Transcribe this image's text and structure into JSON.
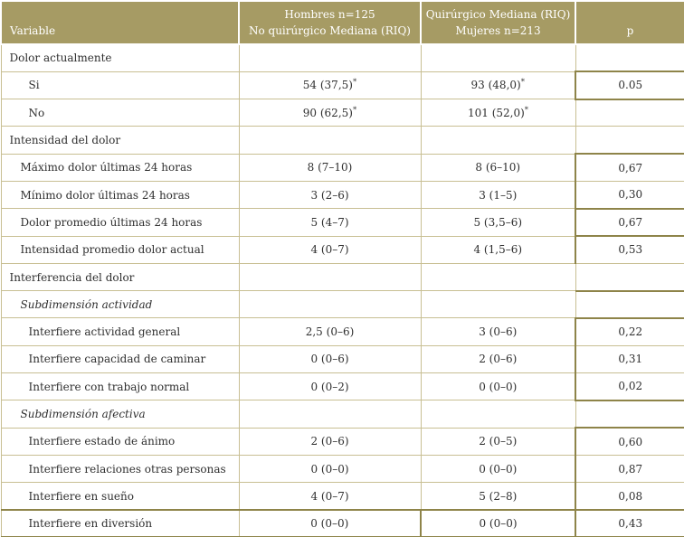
{
  "colors": {
    "header_bg": "#a69b64",
    "header_text": "#ffffff",
    "border_thin": "#c8bf93",
    "border_thick": "#8e8449",
    "text_color": "#2f2f2f",
    "page_bg": "#ffffff"
  },
  "table": {
    "header": {
      "col1": "Variable",
      "col2_line1": "Hombres n=125",
      "col2_line2": "No quirúrgico Mediana (RIQ)",
      "col3_line1": "Quirúrgico Mediana (RIQ)",
      "col3_line2": "Mujeres n=213",
      "col4": "p"
    },
    "rows": [
      {
        "label": "Dolor actualmente",
        "indent": 0,
        "italic": false,
        "c2": "",
        "c2sup": "",
        "c3": "",
        "c3sup": "",
        "p": "",
        "p_thick_top": false,
        "p_thick_left": false,
        "last": false
      },
      {
        "label": "Si",
        "indent": 2,
        "italic": false,
        "c2": "54 (37,5)",
        "c2sup": "*",
        "c3": "93 (48,0)",
        "c3sup": "*",
        "p": "0.05",
        "p_thick_top": true,
        "p_thick_left": true,
        "last": false
      },
      {
        "label": "No",
        "indent": 2,
        "italic": false,
        "c2": "90 (62,5)",
        "c2sup": "*",
        "c3": "101 (52,0)",
        "c3sup": "*",
        "p": "",
        "p_thick_top": true,
        "p_thick_left": false,
        "last": false
      },
      {
        "label": "Intensidad del dolor",
        "indent": 0,
        "italic": false,
        "c2": "",
        "c2sup": "",
        "c3": "",
        "c3sup": "",
        "p": "",
        "p_thick_top": false,
        "p_thick_left": false,
        "last": false
      },
      {
        "label": "Máximo dolor últimas 24 horas",
        "indent": 1,
        "italic": false,
        "c2": "8 (7–10)",
        "c2sup": "",
        "c3": "8 (6–10)",
        "c3sup": "",
        "p": "0,67",
        "p_thick_top": true,
        "p_thick_left": true,
        "last": false
      },
      {
        "label": "Mínimo dolor últimas 24 horas",
        "indent": 1,
        "italic": false,
        "c2": "3 (2–6)",
        "c2sup": "",
        "c3": "3 (1–5)",
        "c3sup": "",
        "p": "0,30",
        "p_thick_top": false,
        "p_thick_left": true,
        "last": false
      },
      {
        "label": "Dolor promedio últimas 24 horas",
        "indent": 1,
        "italic": false,
        "c2": "5 (4–7)",
        "c2sup": "",
        "c3": "5 (3,5–6)",
        "c3sup": "",
        "p": "0,67",
        "p_thick_top": true,
        "p_thick_left": true,
        "last": false
      },
      {
        "label": "Intensidad promedio dolor actual",
        "indent": 1,
        "italic": false,
        "c2": "4 (0–7)",
        "c2sup": "",
        "c3": "4 (1,5–6)",
        "c3sup": "",
        "p": "0,53",
        "p_thick_top": true,
        "p_thick_left": true,
        "last": false
      },
      {
        "label": "Interferencia del dolor",
        "indent": 0,
        "italic": false,
        "c2": "",
        "c2sup": "",
        "c3": "",
        "c3sup": "",
        "p": "",
        "p_thick_top": false,
        "p_thick_left": false,
        "last": false
      },
      {
        "label": "Subdimensión actividad",
        "indent": 1,
        "italic": true,
        "c2": "",
        "c2sup": "",
        "c3": "",
        "c3sup": "",
        "p": "",
        "p_thick_top": true,
        "p_thick_left": false,
        "last": false
      },
      {
        "label": "Interfiere actividad general",
        "indent": 2,
        "italic": false,
        "c2": "2,5 (0–6)",
        "c2sup": "",
        "c3": "3 (0–6)",
        "c3sup": "",
        "p": "0,22",
        "p_thick_top": true,
        "p_thick_left": true,
        "last": false
      },
      {
        "label": "Interfiere capacidad de caminar",
        "indent": 2,
        "italic": false,
        "c2": "0 (0–6)",
        "c2sup": "",
        "c3": "2 (0–6)",
        "c3sup": "",
        "p": "0,31",
        "p_thick_top": false,
        "p_thick_left": true,
        "last": false
      },
      {
        "label": "Interfiere con trabajo normal",
        "indent": 2,
        "italic": false,
        "c2": "0 (0–2)",
        "c2sup": "",
        "c3": "0 (0–0)",
        "c3sup": "",
        "p": "0,02",
        "p_thick_top": false,
        "p_thick_left": true,
        "last": false
      },
      {
        "label": "Subdimensión afectiva",
        "indent": 1,
        "italic": true,
        "c2": "",
        "c2sup": "",
        "c3": "",
        "c3sup": "",
        "p": "",
        "p_thick_top": true,
        "p_thick_left": false,
        "last": false
      },
      {
        "label": "Interfiere estado de ánimo",
        "indent": 2,
        "italic": false,
        "c2": "2 (0–6)",
        "c2sup": "",
        "c3": "2 (0–5)",
        "c3sup": "",
        "p": "0,60",
        "p_thick_top": true,
        "p_thick_left": true,
        "last": false
      },
      {
        "label": "Interfiere relaciones otras personas",
        "indent": 2,
        "italic": false,
        "c2": "0 (0–0)",
        "c2sup": "",
        "c3": "0 (0–0)",
        "c3sup": "",
        "p": "0,87",
        "p_thick_top": false,
        "p_thick_left": true,
        "last": false
      },
      {
        "label": "Interfiere en sueño",
        "indent": 2,
        "italic": false,
        "c2": "4 (0–7)",
        "c2sup": "",
        "c3": "5 (2–8)",
        "c3sup": "",
        "p": "0,08",
        "p_thick_top": false,
        "p_thick_left": true,
        "last": false
      },
      {
        "label": "Interfiere en diversión",
        "indent": 2,
        "italic": false,
        "c2": "0 (0–0)",
        "c2sup": "",
        "c3": "0 (0–0)",
        "c3sup": "",
        "p": "0,43",
        "p_thick_top": false,
        "p_thick_left": true,
        "last": true
      }
    ]
  }
}
